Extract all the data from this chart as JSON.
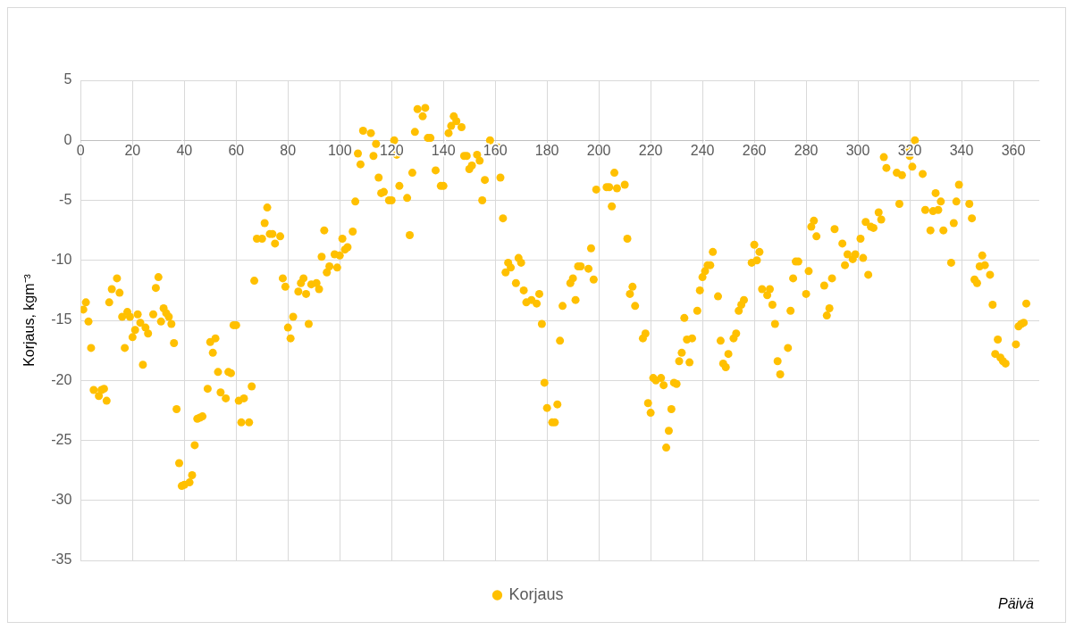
{
  "chart_data": {
    "type": "scatter",
    "xlabel": "Päivä",
    "ylabel": "Korjaus, kgm⁻³",
    "xlim": [
      0,
      370
    ],
    "xticks": [
      0,
      20,
      40,
      60,
      80,
      100,
      120,
      140,
      160,
      180,
      200,
      220,
      240,
      260,
      280,
      300,
      320,
      340,
      360
    ],
    "ylim": [
      -35,
      5
    ],
    "yticks": [
      -35,
      -30,
      -25,
      -20,
      -15,
      -10,
      -5,
      0,
      5
    ],
    "grid": true,
    "legend": "bottom",
    "marker": "circle",
    "series": [
      {
        "name": "Korjaus",
        "color": "#ffc000",
        "x": [
          1,
          2,
          3,
          4,
          5,
          7,
          8,
          9,
          10,
          11,
          12,
          14,
          15,
          16,
          17,
          18,
          19,
          20,
          21,
          22,
          23,
          24,
          25,
          26,
          28,
          29,
          30,
          31,
          32,
          33,
          34,
          35,
          36,
          37,
          38,
          39,
          40,
          42,
          43,
          44,
          45,
          46,
          47,
          49,
          50,
          51,
          52,
          53,
          54,
          56,
          57,
          58,
          59,
          60,
          61,
          62,
          63,
          65,
          66,
          67,
          68,
          70,
          71,
          72,
          73,
          74,
          75,
          77,
          78,
          79,
          80,
          81,
          82,
          84,
          85,
          86,
          87,
          88,
          89,
          91,
          92,
          93,
          94,
          95,
          96,
          98,
          99,
          100,
          101,
          102,
          103,
          105,
          106,
          107,
          108,
          109,
          112,
          113,
          114,
          115,
          116,
          117,
          119,
          120,
          121,
          122,
          123,
          126,
          127,
          128,
          129,
          130,
          132,
          133,
          134,
          135,
          137,
          139,
          140,
          142,
          143,
          144,
          145,
          147,
          148,
          149,
          150,
          151,
          153,
          154,
          155,
          156,
          158,
          161,
          162,
          163,
          164,
          165,
          166,
          168,
          169,
          170,
          171,
          172,
          174,
          176,
          177,
          178,
          179,
          180,
          182,
          183,
          184,
          185,
          186,
          189,
          190,
          191,
          192,
          193,
          196,
          197,
          198,
          199,
          203,
          204,
          205,
          206,
          207,
          210,
          211,
          212,
          213,
          214,
          217,
          218,
          219,
          220,
          221,
          222,
          224,
          225,
          226,
          227,
          228,
          229,
          230,
          231,
          232,
          233,
          234,
          235,
          236,
          238,
          239,
          240,
          241,
          242,
          243,
          244,
          246,
          247,
          248,
          249,
          250,
          252,
          253,
          254,
          255,
          256,
          259,
          260,
          261,
          262,
          263,
          265,
          266,
          267,
          268,
          269,
          270,
          273,
          274,
          275,
          276,
          277,
          280,
          281,
          282,
          283,
          284,
          287,
          288,
          289,
          290,
          291,
          294,
          295,
          296,
          298,
          299,
          301,
          302,
          303,
          304,
          305,
          306,
          308,
          309,
          310,
          311,
          315,
          316,
          317,
          319,
          320,
          321,
          322,
          325,
          326,
          328,
          329,
          330,
          331,
          332,
          333,
          336,
          337,
          338,
          339,
          343,
          344,
          345,
          346,
          347,
          348,
          349,
          351,
          352,
          353,
          354,
          355,
          356,
          357,
          361,
          362,
          363,
          364,
          365
        ],
        "values": [
          -14.1,
          -13.5,
          -15.1,
          -17.3,
          -20.8,
          -21.3,
          -20.8,
          -20.7,
          -21.7,
          -13.5,
          -12.4,
          -11.5,
          -12.7,
          -14.7,
          -17.3,
          -14.3,
          -14.7,
          -16.4,
          -15.8,
          -14.5,
          -15.2,
          -18.7,
          -15.6,
          -16.1,
          -14.5,
          -12.3,
          -11.4,
          -15.1,
          -14.0,
          -14.4,
          -14.7,
          -15.3,
          -16.9,
          -22.4,
          -26.9,
          -28.8,
          -28.7,
          -28.5,
          -27.9,
          -25.4,
          -23.2,
          -23.1,
          -23.0,
          -20.7,
          -16.8,
          -17.7,
          -16.5,
          -19.3,
          -21.0,
          -21.5,
          -19.3,
          -19.4,
          -15.4,
          -15.4,
          -21.7,
          -23.5,
          -21.5,
          -23.5,
          -20.5,
          -11.7,
          -8.2,
          -8.2,
          -6.9,
          -5.6,
          -7.8,
          -7.8,
          -8.6,
          -8.0,
          -11.5,
          -12.2,
          -15.6,
          -16.5,
          -14.7,
          -12.6,
          -11.9,
          -11.5,
          -12.8,
          -15.3,
          -12.0,
          -11.9,
          -12.4,
          -9.7,
          -7.5,
          -11.0,
          -10.5,
          -9.5,
          -10.6,
          -9.6,
          -8.2,
          -9.1,
          -8.9,
          -7.6,
          -5.1,
          -1.1,
          -2.0,
          0.8,
          0.6,
          -1.3,
          -0.3,
          -3.1,
          -4.4,
          -4.3,
          -5.0,
          -5.0,
          0.0,
          -1.2,
          -3.8,
          -4.8,
          -7.9,
          -2.7,
          0.7,
          2.6,
          2.0,
          2.7,
          0.2,
          0.2,
          -2.5,
          -3.8,
          -3.8,
          0.6,
          1.2,
          2.0,
          1.6,
          1.1,
          -1.3,
          -1.3,
          -2.4,
          -2.1,
          -1.2,
          -1.7,
          -5.0,
          -3.3,
          0.0,
          -0.6,
          -3.1,
          -6.5,
          -11.0,
          -10.2,
          -10.6,
          -11.9,
          -9.8,
          -10.2,
          -12.5,
          -13.5,
          -13.3,
          -13.6,
          -12.8,
          -15.3,
          -20.2,
          -22.3,
          -23.5,
          -23.5,
          -22.0,
          -16.7,
          -13.8,
          -11.9,
          -11.5,
          -13.3,
          -10.5,
          -10.5,
          -10.7,
          -9.0,
          -11.6,
          -4.1,
          -3.9,
          -3.9,
          -5.5,
          -2.7,
          -4.0,
          -3.7,
          -8.2,
          -12.8,
          -12.2,
          -13.8,
          -16.5,
          -16.1,
          -21.9,
          -22.7,
          -19.8,
          -20.0,
          -19.8,
          -20.4,
          -25.6,
          -24.2,
          -22.4,
          -20.2,
          -20.3,
          -18.4,
          -17.7,
          -14.8,
          -16.6,
          -18.5,
          -16.5,
          -14.2,
          -12.5,
          -11.4,
          -10.9,
          -10.4,
          -10.4,
          -9.3,
          -13.0,
          -16.7,
          -18.6,
          -18.9,
          -17.8,
          -16.5,
          -16.1,
          -14.2,
          -13.7,
          -13.3,
          -10.2,
          -8.7,
          -10.0,
          -9.3,
          -12.4,
          -12.9,
          -12.4,
          -13.7,
          -15.3,
          -18.4,
          -19.5,
          -17.3,
          -14.2,
          -11.5,
          -10.1,
          -10.1,
          -12.8,
          -10.9,
          -7.2,
          -6.7,
          -8.0,
          -12.1,
          -14.6,
          -14.0,
          -11.5,
          -7.4,
          -8.6,
          -10.4,
          -9.5,
          -9.9,
          -9.5,
          -8.2,
          -9.8,
          -6.8,
          -11.2,
          -7.2,
          -7.3,
          -6.0,
          -6.6,
          -1.4,
          -2.3,
          -2.7,
          -5.3,
          -2.9,
          -0.7,
          -1.3,
          -2.2,
          0.0,
          -2.8,
          -5.8,
          -7.5,
          -5.9,
          -4.4,
          -5.8,
          -5.1,
          -7.5,
          -10.2,
          -6.9,
          -5.1,
          -3.7,
          -5.3,
          -6.5,
          -11.6,
          -11.9,
          -10.5,
          -9.6,
          -10.4,
          -11.2,
          -13.7,
          -17.8,
          -16.6,
          -18.1,
          -18.4,
          -18.6,
          -17.0,
          -15.5,
          -15.3,
          -15.2,
          -13.6
        ]
      }
    ]
  }
}
